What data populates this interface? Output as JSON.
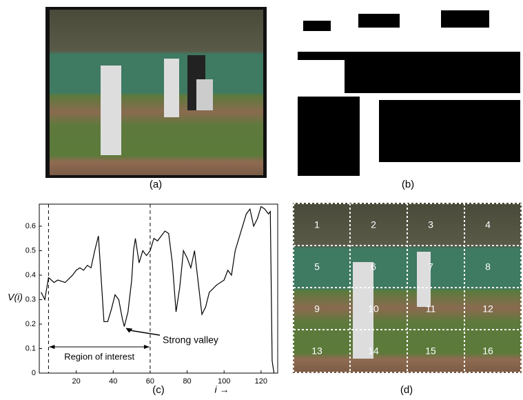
{
  "captions": {
    "a": "(a)",
    "b": "(b)",
    "c": "(c)",
    "d": "(d)"
  },
  "grid_labels": [
    "1",
    "2",
    "3",
    "4",
    "5",
    "6",
    "7",
    "8",
    "9",
    "10",
    "11",
    "12",
    "13",
    "14",
    "15",
    "16"
  ],
  "chart_data": {
    "type": "line",
    "ylabel": "V(i)",
    "xlabel": "i →",
    "x": [
      1,
      3,
      5,
      8,
      10,
      14,
      18,
      20,
      22,
      24,
      26,
      28,
      30,
      32,
      35,
      37,
      39,
      41,
      43,
      45,
      46,
      48,
      50,
      51,
      52,
      54,
      56,
      58,
      60,
      62,
      64,
      66,
      68,
      70,
      72,
      73,
      74,
      76,
      78,
      80,
      82,
      84,
      86,
      88,
      90,
      92,
      96,
      100,
      102,
      104,
      106,
      108,
      110,
      112,
      114,
      116,
      118,
      120,
      122,
      124,
      125,
      126,
      127
    ],
    "values": [
      0.33,
      0.3,
      0.39,
      0.37,
      0.38,
      0.37,
      0.4,
      0.42,
      0.43,
      0.42,
      0.44,
      0.43,
      0.5,
      0.56,
      0.21,
      0.21,
      0.26,
      0.32,
      0.3,
      0.22,
      0.19,
      0.25,
      0.38,
      0.5,
      0.55,
      0.45,
      0.5,
      0.48,
      0.5,
      0.55,
      0.54,
      0.56,
      0.58,
      0.57,
      0.45,
      0.35,
      0.25,
      0.35,
      0.5,
      0.47,
      0.43,
      0.5,
      0.37,
      0.24,
      0.27,
      0.33,
      0.36,
      0.38,
      0.42,
      0.4,
      0.5,
      0.55,
      0.6,
      0.65,
      0.67,
      0.6,
      0.63,
      0.68,
      0.67,
      0.65,
      0.66,
      0.05,
      0
    ],
    "color": "#000000",
    "xlim": [
      0,
      129
    ],
    "ylim": [
      0,
      0.69
    ],
    "xticks": [
      20,
      40,
      60,
      80,
      100,
      120
    ],
    "yticks": [
      0,
      0.1,
      0.2,
      0.3,
      0.4,
      0.5,
      0.6
    ],
    "vlines": [
      5,
      60
    ],
    "region_label": "Region of interest",
    "valley": {
      "text": "Strong valley",
      "x": 46,
      "y": 0.19
    }
  }
}
